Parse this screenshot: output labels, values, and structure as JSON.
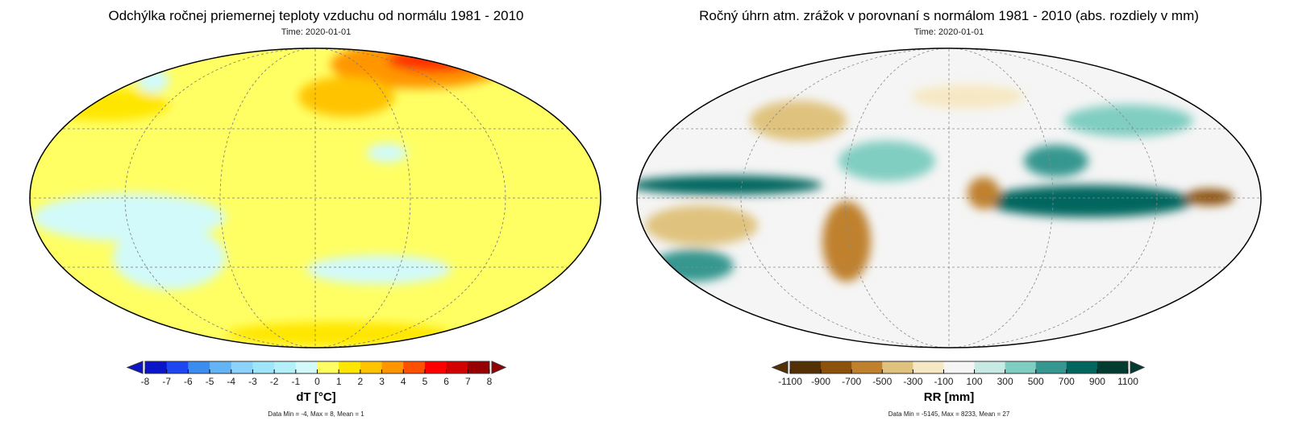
{
  "left_panel": {
    "title": "Odchýlka ročnej priemernej teploty vzduchu od normálu 1981 - 2010",
    "time": "Time: 2020-01-01",
    "colorbar": {
      "labels": [
        "-8",
        "-7",
        "-6",
        "-5",
        "-4",
        "-3",
        "-2",
        "-1",
        "0",
        "1",
        "2",
        "3",
        "4",
        "5",
        "6",
        "7",
        "8"
      ],
      "colors": [
        "#0a14c8",
        "#1e46f0",
        "#3c8cf0",
        "#64b4f5",
        "#8cd2fa",
        "#a0e6fa",
        "#b4f0fa",
        "#d2fafa",
        "#ffff64",
        "#ffe600",
        "#ffc300",
        "#ff9600",
        "#ff5000",
        "#ff0000",
        "#d20000",
        "#960000"
      ],
      "arrow_low": "#0a14c8",
      "arrow_high": "#960000",
      "unit": "dT [°C]"
    },
    "stats": "Data Min = -4, Max = 8, Mean = 1"
  },
  "right_panel": {
    "title": "Ročný úhrn atm. zrážok v porovnaní s normálom 1981 - 2010 (abs. rozdiely v mm)",
    "time": "Time: 2020-01-01",
    "colorbar": {
      "labels": [
        "-1100",
        "-900",
        "-700",
        "-500",
        "-300",
        "-100",
        "100",
        "300",
        "500",
        "700",
        "900",
        "1100"
      ],
      "colors": [
        "#543005",
        "#8c510a",
        "#bf812d",
        "#dfc27d",
        "#f6e8c3",
        "#f5f5f5",
        "#c7eae5",
        "#80cdc1",
        "#35978f",
        "#01665e",
        "#003c30"
      ],
      "arrow_low": "#543005",
      "arrow_high": "#003c30",
      "unit": "RR [mm]"
    },
    "stats": "Data Min = -5145, Max = 8233, Mean = 27"
  }
}
